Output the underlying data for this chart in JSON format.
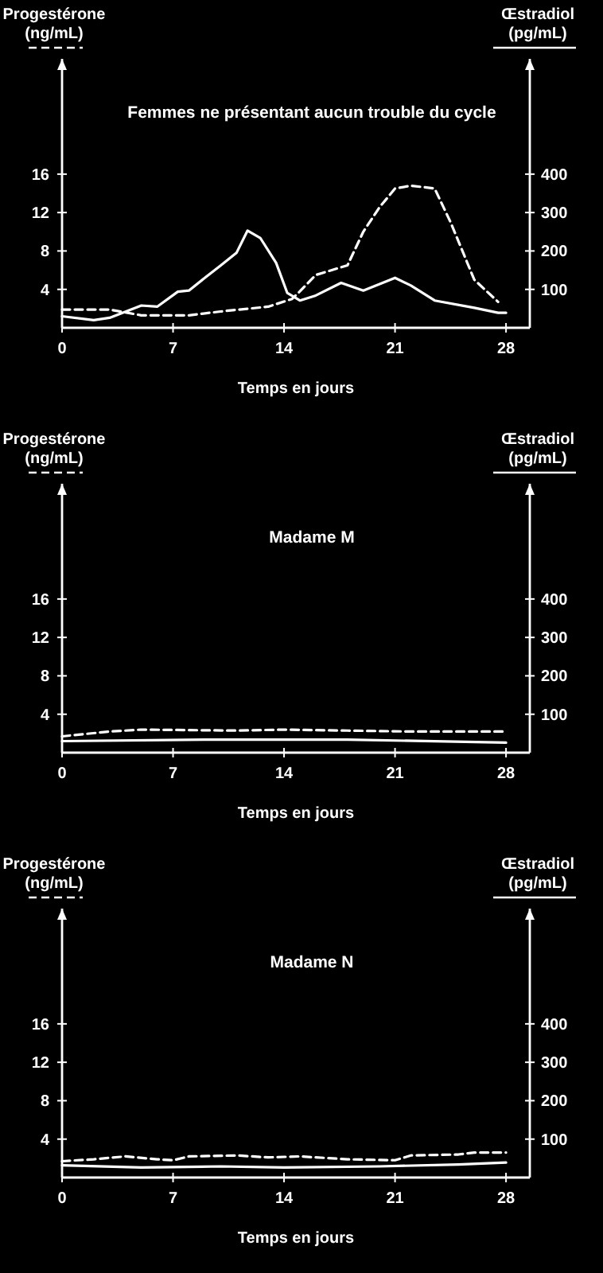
{
  "chart_data": [
    {
      "type": "line",
      "title": "Femmes ne présentant aucun trouble du cycle",
      "xlabel": "Temps en jours",
      "ylabel": "Progestérone\n(ng/mL)",
      "y2label": "Œstradiol\n(pg/mL)",
      "xlim": [
        0,
        29.5
      ],
      "xticks": [
        0,
        7,
        14,
        21,
        28
      ],
      "ylim": [
        0,
        28
      ],
      "yticks": [
        4,
        8,
        12,
        16
      ],
      "y2lim": [
        0,
        700
      ],
      "y2ticks": [
        100,
        200,
        300,
        400
      ],
      "series": [
        {
          "color": "#ffffff",
          "line_style": "dashed",
          "axis": "y",
          "x": [
            0,
            3,
            5,
            8,
            10,
            13,
            14.5,
            15,
            16,
            18,
            19,
            20,
            21,
            22,
            23.5,
            24.5,
            26,
            27.5
          ],
          "values": [
            1.9,
            1.9,
            1.3,
            1.3,
            1.7,
            2.2,
            3,
            3.8,
            5.5,
            6.5,
            10,
            12.5,
            14.5,
            14.8,
            14.5,
            11,
            5,
            2.7
          ]
        },
        {
          "color": "#ffffff",
          "line_style": "solid",
          "axis": "y2",
          "x": [
            0,
            2,
            3,
            5,
            6,
            7.3,
            8,
            9,
            10,
            11,
            11.7,
            12.5,
            13.5,
            14.2,
            15,
            16,
            17.6,
            19,
            21,
            22,
            23.5,
            26,
            27.5,
            28
          ],
          "values": [
            30,
            20,
            26,
            58,
            55,
            94,
            97,
            130,
            162,
            195,
            253,
            234,
            169,
            91,
            71,
            84,
            117,
            97,
            130,
            110,
            71,
            52,
            39,
            39
          ]
        }
      ]
    },
    {
      "type": "line",
      "title": "Madame  M",
      "xlabel": "Temps en jours",
      "ylabel": "Progestérone\n(ng/mL)",
      "y2label": "Œstradiol\n(pg/mL)",
      "xlim": [
        0,
        29.5
      ],
      "xticks": [
        0,
        7,
        14,
        21,
        28
      ],
      "ylim": [
        0,
        28
      ],
      "yticks": [
        4,
        8,
        12,
        16
      ],
      "y2lim": [
        0,
        700
      ],
      "y2ticks": [
        100,
        200,
        300,
        400
      ],
      "series": [
        {
          "color": "#ffffff",
          "line_style": "dashed",
          "axis": "y",
          "x": [
            0,
            3,
            5,
            11,
            14,
            18,
            22,
            28
          ],
          "values": [
            1.7,
            2.2,
            2.4,
            2.3,
            2.4,
            2.3,
            2.2,
            2.2
          ]
        },
        {
          "color": "#ffffff",
          "line_style": "solid",
          "axis": "y2",
          "x": [
            0,
            9,
            18,
            28
          ],
          "values": [
            30,
            34,
            34,
            26
          ]
        }
      ]
    },
    {
      "type": "line",
      "title": "Madame N",
      "xlabel": "Temps en jours",
      "ylabel": "Progestérone\n(ng/mL)",
      "y2label": "Œstradiol\n(pg/mL)",
      "xlim": [
        0,
        29.5
      ],
      "xticks": [
        0,
        7,
        14,
        21,
        28
      ],
      "ylim": [
        0,
        28
      ],
      "yticks": [
        4,
        8,
        12,
        16
      ],
      "y2lim": [
        0,
        700
      ],
      "y2ticks": [
        100,
        200,
        300,
        400
      ],
      "series": [
        {
          "color": "#ffffff",
          "line_style": "dashed",
          "axis": "y",
          "x": [
            0,
            2,
            4,
            6,
            7,
            8,
            11,
            13,
            15,
            18,
            21,
            22,
            25,
            26,
            28
          ],
          "values": [
            1.7,
            1.9,
            2.2,
            1.9,
            1.8,
            2.2,
            2.3,
            2.1,
            2.2,
            1.9,
            1.8,
            2.3,
            2.4,
            2.6,
            2.6
          ]
        },
        {
          "color": "#ffffff",
          "line_style": "solid",
          "axis": "y2",
          "x": [
            0,
            5,
            10,
            14,
            20,
            25,
            28
          ],
          "values": [
            32,
            26,
            29,
            26,
            29,
            34,
            39
          ]
        }
      ]
    }
  ]
}
